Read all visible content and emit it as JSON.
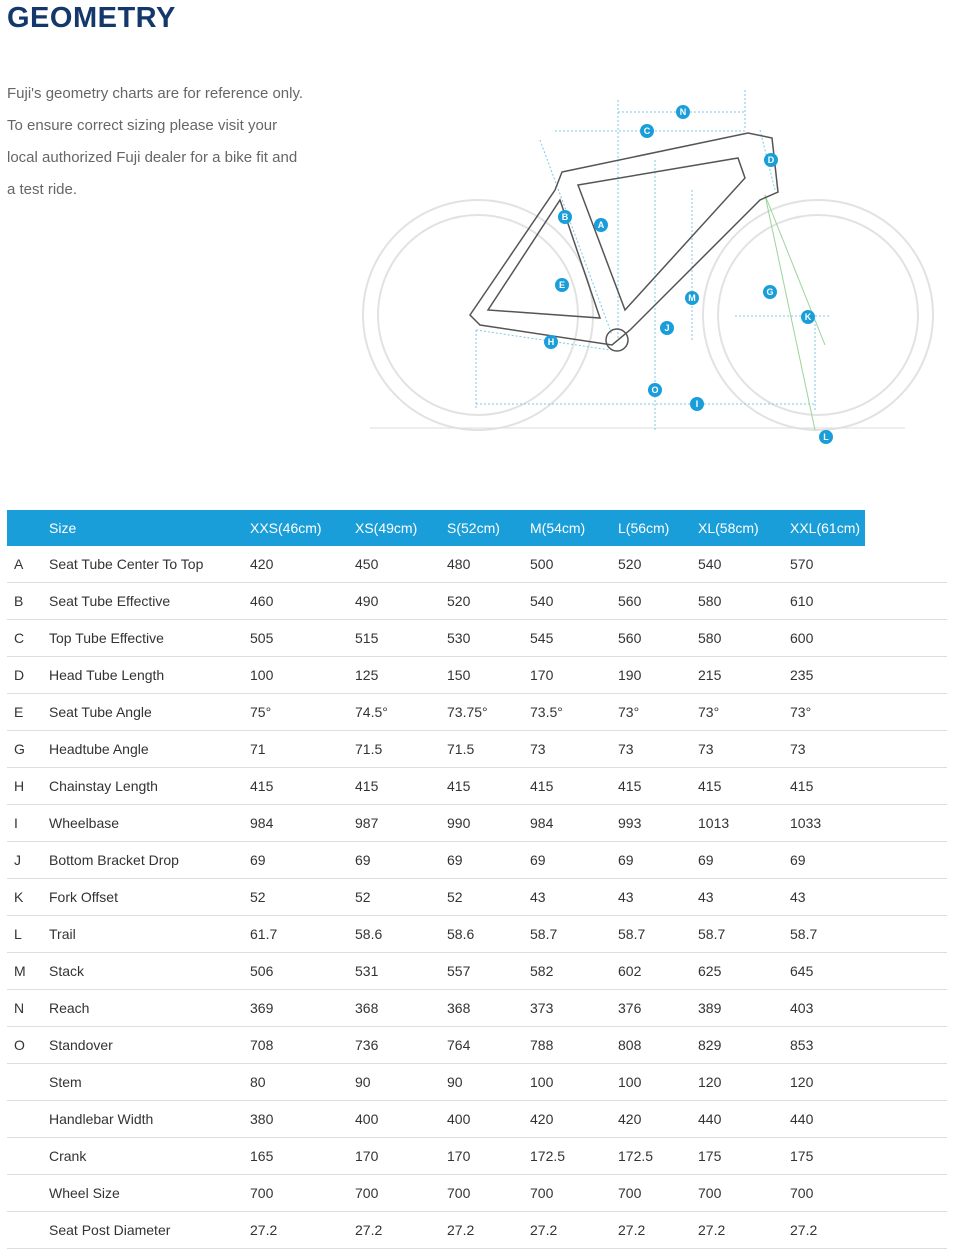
{
  "header": {
    "title": "GEOMETRY"
  },
  "intro": "Fuji's geometry charts are for reference only. To ensure correct sizing please visit your local authorized Fuji dealer for a bike fit and a test ride.",
  "diagram": {
    "labels": [
      "N",
      "C",
      "D",
      "B",
      "A",
      "E",
      "M",
      "G",
      "K",
      "J",
      "H",
      "O",
      "I",
      "L"
    ]
  },
  "table": {
    "columns": [
      "Size",
      "XXS(46cm)",
      "XS(49cm)",
      "S(52cm)",
      "M(54cm)",
      "L(56cm)",
      "XL(58cm)",
      "XXL(61cm)"
    ],
    "rows": [
      {
        "key": "A",
        "name": "Seat Tube Center To Top",
        "values": [
          "420",
          "450",
          "480",
          "500",
          "520",
          "540",
          "570"
        ]
      },
      {
        "key": "B",
        "name": "Seat Tube Effective",
        "values": [
          "460",
          "490",
          "520",
          "540",
          "560",
          "580",
          "610"
        ]
      },
      {
        "key": "C",
        "name": "Top Tube Effective",
        "values": [
          "505",
          "515",
          "530",
          "545",
          "560",
          "580",
          "600"
        ]
      },
      {
        "key": "D",
        "name": "Head Tube Length",
        "values": [
          "100",
          "125",
          "150",
          "170",
          "190",
          "215",
          "235"
        ]
      },
      {
        "key": "E",
        "name": "Seat Tube Angle",
        "values": [
          "75°",
          "74.5°",
          "73.75°",
          "73.5°",
          "73°",
          "73°",
          "73°"
        ]
      },
      {
        "key": "G",
        "name": "Headtube Angle",
        "values": [
          "71",
          "71.5",
          "71.5",
          "73",
          "73",
          "73",
          "73"
        ]
      },
      {
        "key": "H",
        "name": "Chainstay Length",
        "values": [
          "415",
          "415",
          "415",
          "415",
          "415",
          "415",
          "415"
        ]
      },
      {
        "key": "I",
        "name": "Wheelbase",
        "values": [
          "984",
          "987",
          "990",
          "984",
          "993",
          "1013",
          "1033"
        ]
      },
      {
        "key": "J",
        "name": "Bottom Bracket Drop",
        "values": [
          "69",
          "69",
          "69",
          "69",
          "69",
          "69",
          "69"
        ]
      },
      {
        "key": "K",
        "name": "Fork Offset",
        "values": [
          "52",
          "52",
          "52",
          "43",
          "43",
          "43",
          "43"
        ]
      },
      {
        "key": "L",
        "name": "Trail",
        "values": [
          "61.7",
          "58.6",
          "58.6",
          "58.7",
          "58.7",
          "58.7",
          "58.7"
        ]
      },
      {
        "key": "M",
        "name": "Stack",
        "values": [
          "506",
          "531",
          "557",
          "582",
          "602",
          "625",
          "645"
        ]
      },
      {
        "key": "N",
        "name": "Reach",
        "values": [
          "369",
          "368",
          "368",
          "373",
          "376",
          "389",
          "403"
        ]
      },
      {
        "key": "O",
        "name": "Standover",
        "values": [
          "708",
          "736",
          "764",
          "788",
          "808",
          "829",
          "853"
        ]
      },
      {
        "key": null,
        "name": "Stem",
        "values": [
          "80",
          "90",
          "90",
          "100",
          "100",
          "120",
          "120"
        ]
      },
      {
        "key": null,
        "name": "Handlebar Width",
        "values": [
          "380",
          "400",
          "400",
          "420",
          "420",
          "440",
          "440"
        ]
      },
      {
        "key": null,
        "name": "Crank",
        "values": [
          "165",
          "170",
          "170",
          "172.5",
          "172.5",
          "175",
          "175"
        ]
      },
      {
        "key": null,
        "name": "Wheel Size",
        "values": [
          "700",
          "700",
          "700",
          "700",
          "700",
          "700",
          "700"
        ]
      },
      {
        "key": null,
        "name": "Seat Post Diameter",
        "values": [
          "27.2",
          "27.2",
          "27.2",
          "27.2",
          "27.2",
          "27.2",
          "27.2"
        ]
      }
    ]
  }
}
